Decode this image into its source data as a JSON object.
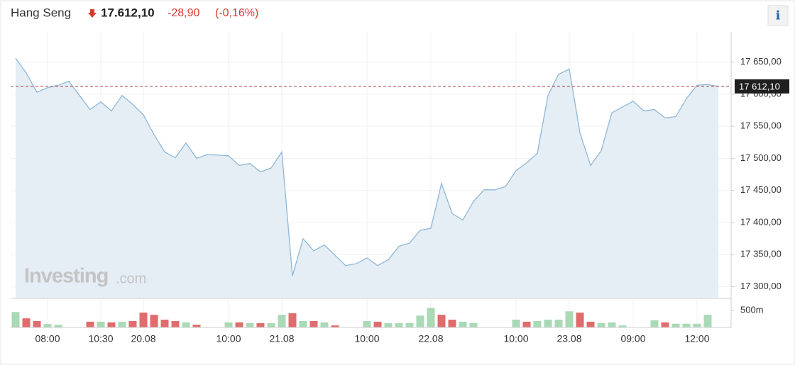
{
  "header": {
    "name": "Hang Seng",
    "price": "17.612,10",
    "change": "-28,90",
    "change_pct": "(-0,16%)",
    "info": "i"
  },
  "watermark": [
    "Investing",
    ".com"
  ],
  "chart_data": [
    {
      "type": "area",
      "categories": [
        null,
        null,
        null,
        "08:00",
        null,
        null,
        null,
        null,
        "10:30",
        null,
        null,
        null,
        "20.08",
        null,
        null,
        null,
        null,
        null,
        null,
        null,
        "10:00",
        null,
        null,
        null,
        null,
        "21.08",
        null,
        null,
        null,
        null,
        null,
        null,
        null,
        "10:00",
        null,
        null,
        null,
        null,
        null,
        "22.08",
        null,
        null,
        null,
        null,
        null,
        null,
        null,
        "10:00",
        null,
        null,
        null,
        null,
        "23.08",
        null,
        null,
        null,
        null,
        null,
        "09:00",
        null,
        null,
        null,
        null,
        null,
        "12:00",
        null,
        null
      ],
      "values": [
        17656,
        17633,
        17603,
        17610,
        17614,
        17620,
        17598,
        17576,
        17588,
        17574,
        17598,
        17584,
        17568,
        17537,
        17510,
        17501,
        17524,
        17500,
        17506,
        17505,
        17504,
        17489,
        17492,
        17479,
        17485,
        17510,
        17317,
        17375,
        17356,
        17365,
        17349,
        17333,
        17336,
        17345,
        17333,
        17342,
        17363,
        17368,
        17388,
        17391,
        17461,
        17414,
        17404,
        17433,
        17451,
        17451,
        17456,
        17481,
        17493,
        17508,
        17598,
        17631,
        17639,
        17540,
        17489,
        17512,
        17571,
        17580,
        17589,
        17574,
        17576,
        17563,
        17565,
        17593,
        17614,
        17615,
        17612
      ],
      "color": "#8fb8d8",
      "fill": "#e5edf5",
      "ylim": [
        17283,
        17697
      ],
      "yticks": [
        {
          "value": 17300,
          "label": "17 300,00"
        },
        {
          "value": 17350,
          "label": "17 350,00"
        },
        {
          "value": 17400,
          "label": "17 400,00"
        },
        {
          "value": 17450,
          "label": "17 450,00"
        },
        {
          "value": 17500,
          "label": "17 500,00"
        },
        {
          "value": 17550,
          "label": "17 550,00"
        },
        {
          "value": 17600,
          "label": "17 600,00"
        },
        {
          "value": 17650,
          "label": "17 650,00"
        }
      ],
      "last": {
        "value": 17612.1,
        "label": "17 612,10"
      },
      "grid": true
    },
    {
      "type": "bar",
      "values": [
        458000000,
        270000000,
        190000000,
        100000000,
        80000000,
        null,
        null,
        170000000,
        170000000,
        150000000,
        170000000,
        190000000,
        440000000,
        375000000,
        230000000,
        190000000,
        150000000,
        80000000,
        null,
        null,
        150000000,
        150000000,
        130000000,
        130000000,
        130000000,
        375000000,
        420000000,
        190000000,
        190000000,
        150000000,
        60000000,
        null,
        null,
        190000000,
        170000000,
        130000000,
        130000000,
        130000000,
        350000000,
        580000000,
        375000000,
        230000000,
        170000000,
        130000000,
        null,
        null,
        null,
        230000000,
        170000000,
        190000000,
        230000000,
        230000000,
        480000000,
        440000000,
        170000000,
        130000000,
        150000000,
        60000000,
        null,
        null,
        210000000,
        150000000,
        110000000,
        110000000,
        110000000,
        375000000,
        null
      ],
      "colors": [
        "#a9d9b5",
        "#e06c6c",
        "#e06c6c",
        "#a9d9b5",
        "#a9d9b5",
        null,
        null,
        "#e06c6c",
        "#a9d9b5",
        "#e06c6c",
        "#a9d9b5",
        "#e06c6c",
        "#e06c6c",
        "#e06c6c",
        "#e06c6c",
        "#e06c6c",
        "#a9d9b5",
        "#e06c6c",
        null,
        null,
        "#a9d9b5",
        "#e06c6c",
        "#a9d9b5",
        "#e06c6c",
        "#a9d9b5",
        "#a9d9b5",
        "#e06c6c",
        "#a9d9b5",
        "#e06c6c",
        "#a9d9b5",
        "#e06c6c",
        null,
        null,
        "#a9d9b5",
        "#e06c6c",
        "#a9d9b5",
        "#a9d9b5",
        "#a9d9b5",
        "#a9d9b5",
        "#a9d9b5",
        "#e06c6c",
        "#e06c6c",
        "#a9d9b5",
        "#a9d9b5",
        null,
        null,
        null,
        "#a9d9b5",
        "#e06c6c",
        "#a9d9b5",
        "#a9d9b5",
        "#a9d9b5",
        "#a9d9b5",
        "#e06c6c",
        "#e06c6c",
        "#a9d9b5",
        "#a9d9b5",
        "#a9d9b5",
        null,
        null,
        "#a9d9b5",
        "#e06c6c",
        "#a9d9b5",
        "#a9d9b5",
        "#a9d9b5",
        "#a9d9b5",
        null
      ],
      "ylim": [
        0,
        800000000
      ],
      "yticks": [
        {
          "value": 500000000,
          "label": "500m"
        }
      ]
    }
  ]
}
